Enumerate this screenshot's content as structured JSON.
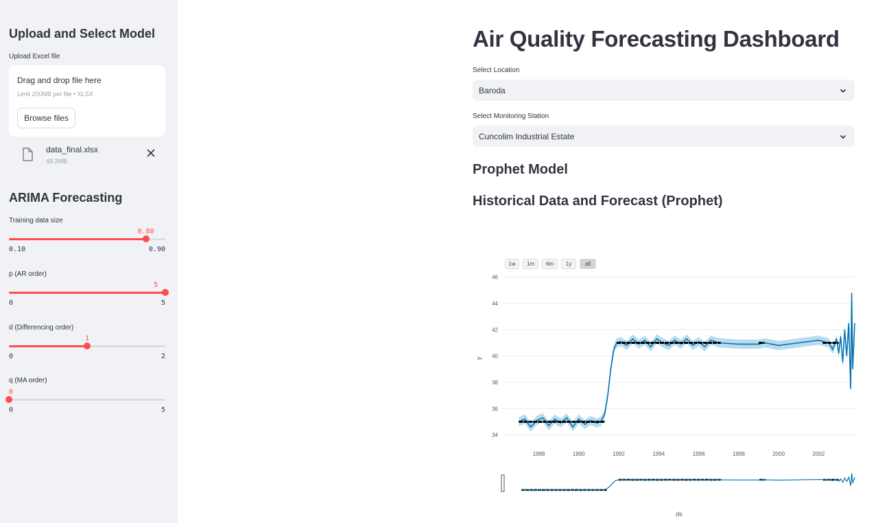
{
  "sidebar": {
    "upload_heading": "Upload and Select Model",
    "upload_label": "Upload Excel file",
    "dropzone_title": "Drag and drop file here",
    "dropzone_limit": "Limit 200MB per file • XLSX",
    "browse_label": "Browse files",
    "file_name": "data_final.xlsx",
    "file_size": "49.2MB",
    "arima_heading": "ARIMA Forecasting",
    "sliders": [
      {
        "label": "Training data size",
        "value": "0.80",
        "min": "0.10",
        "max": "0.90",
        "fraction": 0.875
      },
      {
        "label": "p (AR order)",
        "value": "5",
        "min": "0",
        "max": "5",
        "fraction": 1.0
      },
      {
        "label": "d (Differencing order)",
        "value": "1",
        "min": "0",
        "max": "2",
        "fraction": 0.5
      },
      {
        "label": "q (MA order)",
        "value": "0",
        "min": "0",
        "max": "5",
        "fraction": 0.0
      }
    ],
    "accent_color": "#ff4b4b"
  },
  "main": {
    "title": "Air Quality Forecasting Dashboard",
    "location_label": "Select Location",
    "location_value": "Baroda",
    "station_label": "Select Monitoring Station",
    "station_value": "Cuncolim Industrial Estate",
    "model_heading": "Prophet Model",
    "chart_heading": "Historical Data and Forecast (Prophet)"
  },
  "chart_data": {
    "type": "line",
    "range_buttons": [
      "1w",
      "1m",
      "6m",
      "1y",
      "all"
    ],
    "active_range": "all",
    "xlabel": "ds",
    "ylabel": "y",
    "x_ticks": [
      1988,
      1990,
      1992,
      1994,
      1996,
      1998,
      2000,
      2002
    ],
    "y_ticks": [
      34,
      36,
      38,
      40,
      42,
      44,
      46
    ],
    "xlim": [
      1986.2,
      2003.8
    ],
    "ylim": [
      33.3,
      46.3
    ],
    "colors": {
      "forecast": "#0072b2",
      "band": "#a8d3e8",
      "actual": "#000000"
    },
    "series": [
      {
        "kind": "forecast",
        "x": [
          1987.0,
          1987.3,
          1987.6,
          1987.9,
          1988.2,
          1988.5,
          1988.8,
          1989.1,
          1989.4,
          1989.7,
          1990.0,
          1990.3,
          1990.6,
          1990.9,
          1991.1,
          1991.3,
          1991.45,
          1991.6,
          1991.75,
          1991.9,
          1992.1,
          1992.4,
          1992.7,
          1993.0,
          1993.3,
          1993.6,
          1993.9,
          1994.2,
          1994.5,
          1994.8,
          1995.1,
          1995.4,
          1995.7,
          1996.0,
          1996.3,
          1996.6,
          1997.0,
          1998.0,
          1999.0,
          1999.3,
          2000.0,
          2001.0,
          2002.0,
          2002.5,
          2002.7,
          2002.9,
          2003.0,
          2003.1,
          2003.2,
          2003.3,
          2003.4,
          2003.5,
          2003.6,
          2003.65,
          2003.7,
          2003.8
        ],
        "y": [
          35.0,
          35.2,
          34.6,
          35.1,
          35.3,
          34.7,
          35.2,
          34.9,
          35.3,
          34.6,
          35.2,
          34.8,
          35.1,
          34.9,
          35.0,
          35.6,
          37.0,
          39.0,
          40.5,
          41.0,
          41.1,
          40.8,
          41.3,
          40.9,
          41.2,
          40.7,
          41.3,
          41.0,
          40.8,
          41.2,
          40.9,
          41.3,
          40.8,
          41.1,
          40.7,
          41.2,
          41.0,
          40.9,
          40.9,
          41.0,
          40.8,
          41.0,
          41.2,
          41.0,
          40.5,
          41.3,
          40.2,
          41.5,
          39.5,
          42.0,
          40.0,
          42.5,
          37.5,
          44.8,
          39.0,
          42.5
        ],
        "band_width": 0.35
      },
      {
        "kind": "actual",
        "segments": [
          {
            "x": [
              1987.0,
              1991.3
            ],
            "y": 35.0
          },
          {
            "x": [
              1991.9,
              1997.1
            ],
            "y": 41.0
          },
          {
            "x": [
              1999.0,
              1999.3
            ],
            "y": 41.0
          },
          {
            "x": [
              2002.2,
              2003.0
            ],
            "y": 41.0
          }
        ]
      }
    ]
  }
}
